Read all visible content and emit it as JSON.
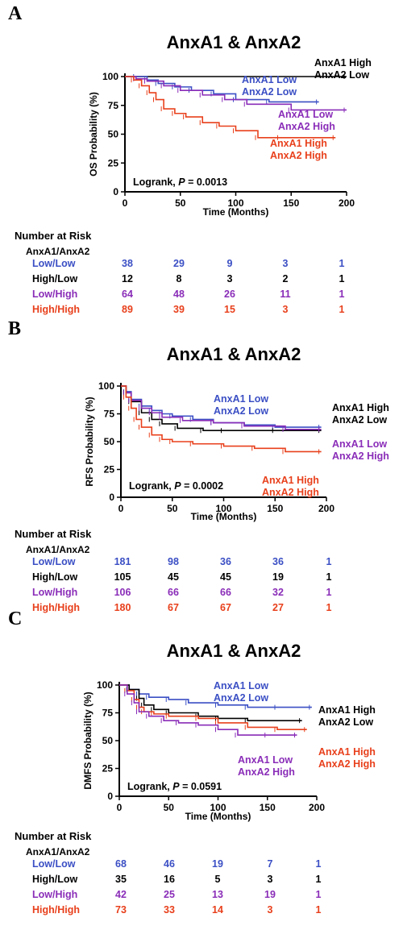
{
  "panels": [
    {
      "letter": "A",
      "title": "AnxA1 & AnxA2",
      "ylabel": "OS Probability (%)",
      "xlabel": "Time (Months)",
      "logrank_prefix": "Logrank, ",
      "logrank_p_label": "P",
      "logrank_value": " = 0.0013",
      "risk": {
        "title": "Number at Risk",
        "subtitle": "AnxA1/AnxA2",
        "rows": [
          {
            "label": "Low/Low",
            "color": "#3b4fc4",
            "values": [
              "38",
              "29",
              "9",
              "3",
              "1"
            ]
          },
          {
            "label": "High/Low",
            "color": "#000000",
            "values": [
              "12",
              "8",
              "3",
              "2",
              "1"
            ]
          },
          {
            "label": "Low/High",
            "color": "#8a2db8",
            "values": [
              "64",
              "48",
              "26",
              "11",
              "1"
            ]
          },
          {
            "label": "High/High",
            "color": "#e8401c",
            "values": [
              "89",
              "39",
              "15",
              "3",
              "1"
            ]
          }
        ]
      },
      "legend": [
        {
          "line1": "AnxA1 High",
          "line2": "AnxA2 Low",
          "color": "#000000"
        },
        {
          "line1": "AnxA1 Low",
          "line2": "AnxA2 Low",
          "color": "#3b4fc4"
        },
        {
          "line1": "AnxA1 Low",
          "line2": "AnxA2 High",
          "color": "#8a2db8"
        },
        {
          "line1": "AnxA1 High",
          "line2": "AnxA2 High",
          "color": "#e8401c"
        }
      ]
    },
    {
      "letter": "B",
      "title": "AnxA1 & AnxA2",
      "ylabel": "RFS Probability (%)",
      "xlabel": "Time (Months)",
      "logrank_prefix": "Logrank, ",
      "logrank_p_label": "P",
      "logrank_value": " = 0.0002",
      "risk": {
        "title": "Number at Risk",
        "subtitle": "AnxA1/AnxA2",
        "rows": [
          {
            "label": "Low/Low",
            "color": "#3b4fc4",
            "values": [
              "181",
              "98",
              "36",
              "36",
              "1"
            ]
          },
          {
            "label": "High/Low",
            "color": "#000000",
            "values": [
              "105",
              "45",
              "45",
              "19",
              "1"
            ]
          },
          {
            "label": "Low/High",
            "color": "#8a2db8",
            "values": [
              "106",
              "66",
              "66",
              "32",
              "1"
            ]
          },
          {
            "label": "High/High",
            "color": "#e8401c",
            "values": [
              "180",
              "67",
              "67",
              "27",
              "1"
            ]
          }
        ]
      },
      "legend": [
        {
          "line1": "AnxA1 Low",
          "line2": "AnxA2 Low",
          "color": "#3b4fc4"
        },
        {
          "line1": "AnxA1 High",
          "line2": "AnxA2 Low",
          "color": "#000000"
        },
        {
          "line1": "AnxA1 Low",
          "line2": "AnxA2 High",
          "color": "#8a2db8"
        },
        {
          "line1": "AnxA1 High",
          "line2": "AnxA2 High",
          "color": "#e8401c"
        }
      ]
    },
    {
      "letter": "C",
      "title": "AnxA1 & AnxA2",
      "ylabel": "DMFS Probability (%)",
      "xlabel": "Time (Months)",
      "logrank_prefix": "Logrank, ",
      "logrank_p_label": "P",
      "logrank_value": " = 0.0591",
      "risk": {
        "title": "Number at Risk",
        "subtitle": "AnxA1/AnxA2",
        "rows": [
          {
            "label": "Low/Low",
            "color": "#3b4fc4",
            "values": [
              "68",
              "46",
              "19",
              "7",
              "1"
            ]
          },
          {
            "label": "High/Low",
            "color": "#000000",
            "values": [
              "35",
              "16",
              "5",
              "3",
              "1"
            ]
          },
          {
            "label": "Low/High",
            "color": "#8a2db8",
            "values": [
              "42",
              "25",
              "13",
              "19",
              "1"
            ]
          },
          {
            "label": "High/High",
            "color": "#e8401c",
            "values": [
              "73",
              "33",
              "14",
              "3",
              "1"
            ]
          }
        ]
      },
      "legend": [
        {
          "line1": "AnxA1 Low",
          "line2": "AnxA2 Low",
          "color": "#3b4fc4"
        },
        {
          "line1": "AnxA1 High",
          "line2": "AnxA2 Low",
          "color": "#000000"
        },
        {
          "line1": "AnxA1 High",
          "line2": "AnxA2 High",
          "color": "#e8401c"
        },
        {
          "line1": "AnxA1 Low",
          "line2": "AnxA2 High",
          "color": "#8a2db8"
        }
      ]
    }
  ],
  "chart_data": [
    {
      "type": "line",
      "title": "AnxA1 & AnxA2",
      "xlabel": "Time (Months)",
      "ylabel": "OS Probability (%)",
      "xlim": [
        0,
        200
      ],
      "ylim": [
        0,
        100
      ],
      "xticks": [
        0,
        50,
        100,
        150,
        200
      ],
      "yticks": [
        0,
        25,
        50,
        75,
        100
      ],
      "series": [
        {
          "name": "AnxA1 High / AnxA2 Low",
          "color": "#000000",
          "x": [
            0,
            200
          ],
          "y": [
            100,
            100
          ]
        },
        {
          "name": "AnxA1 Low / AnxA2 Low",
          "color": "#3b4fc4",
          "x": [
            0,
            10,
            20,
            30,
            45,
            60,
            80,
            100,
            130,
            175
          ],
          "y": [
            100,
            100,
            97,
            94,
            91,
            88,
            85,
            80,
            78,
            78
          ]
        },
        {
          "name": "AnxA1 Low / AnxA2 High",
          "color": "#8a2db8",
          "x": [
            0,
            10,
            20,
            35,
            50,
            70,
            90,
            110,
            150,
            200
          ],
          "y": [
            100,
            98,
            96,
            92,
            88,
            84,
            80,
            76,
            71,
            71
          ]
        },
        {
          "name": "AnxA1 High / AnxA2 High",
          "color": "#e8401c",
          "x": [
            0,
            8,
            15,
            22,
            28,
            35,
            45,
            55,
            70,
            85,
            100,
            120,
            140,
            190
          ],
          "y": [
            100,
            97,
            92,
            86,
            80,
            72,
            68,
            65,
            60,
            57,
            53,
            47,
            47,
            47
          ]
        }
      ]
    },
    {
      "type": "line",
      "title": "AnxA1 & AnxA2",
      "xlabel": "Time (Months)",
      "ylabel": "RFS Probability (%)",
      "xlim": [
        0,
        200
      ],
      "ylim": [
        0,
        100
      ],
      "xticks": [
        0,
        50,
        100,
        150,
        200
      ],
      "yticks": [
        0,
        25,
        50,
        75,
        100
      ],
      "series": [
        {
          "name": "AnxA1 Low / AnxA2 Low",
          "color": "#3b4fc4",
          "x": [
            0,
            5,
            10,
            20,
            30,
            40,
            50,
            70,
            90,
            120,
            150,
            195
          ],
          "y": [
            100,
            95,
            88,
            82,
            78,
            75,
            73,
            70,
            67,
            65,
            63,
            63
          ]
        },
        {
          "name": "AnxA1 High / AnxA2 Low",
          "color": "#000000",
          "x": [
            0,
            5,
            10,
            20,
            30,
            40,
            55,
            80,
            100,
            150,
            195
          ],
          "y": [
            100,
            94,
            86,
            76,
            70,
            66,
            62,
            60,
            60,
            60,
            60
          ]
        },
        {
          "name": "AnxA1 Low / AnxA2 High",
          "color": "#8a2db8",
          "x": [
            0,
            5,
            10,
            20,
            30,
            40,
            60,
            90,
            120,
            160,
            195
          ],
          "y": [
            100,
            94,
            87,
            80,
            76,
            72,
            69,
            67,
            64,
            61,
            61
          ]
        },
        {
          "name": "AnxA1 High / AnxA2 High",
          "color": "#e8401c",
          "x": [
            0,
            5,
            10,
            15,
            20,
            30,
            40,
            50,
            70,
            100,
            130,
            160,
            195
          ],
          "y": [
            100,
            90,
            80,
            70,
            63,
            56,
            52,
            50,
            48,
            46,
            44,
            41,
            41
          ]
        }
      ]
    },
    {
      "type": "line",
      "title": "AnxA1 & AnxA2",
      "xlabel": "Time (Months)",
      "ylabel": "DMFS Probability (%)",
      "xlim": [
        0,
        200
      ],
      "ylim": [
        0,
        100
      ],
      "xticks": [
        0,
        50,
        100,
        150,
        200
      ],
      "yticks": [
        0,
        25,
        50,
        75,
        100
      ],
      "series": [
        {
          "name": "AnxA1 Low / AnxA2 Low",
          "color": "#3b4fc4",
          "x": [
            0,
            10,
            20,
            30,
            50,
            70,
            100,
            130,
            160,
            195
          ],
          "y": [
            100,
            96,
            92,
            89,
            87,
            84,
            82,
            80,
            80,
            80
          ]
        },
        {
          "name": "AnxA1 High / AnxA2 Low",
          "color": "#000000",
          "x": [
            0,
            10,
            20,
            25,
            35,
            50,
            80,
            100,
            130,
            185
          ],
          "y": [
            100,
            96,
            88,
            82,
            78,
            75,
            72,
            70,
            68,
            68
          ]
        },
        {
          "name": "AnxA1 High / AnxA2 High",
          "color": "#e8401c",
          "x": [
            0,
            8,
            15,
            20,
            25,
            35,
            50,
            80,
            100,
            130,
            160,
            190
          ],
          "y": [
            100,
            95,
            87,
            80,
            76,
            74,
            72,
            70,
            66,
            62,
            60,
            60
          ]
        },
        {
          "name": "AnxA1 Low / AnxA2 High",
          "color": "#8a2db8",
          "x": [
            0,
            8,
            15,
            20,
            30,
            45,
            60,
            80,
            100,
            120,
            150,
            180
          ],
          "y": [
            100,
            92,
            84,
            76,
            72,
            68,
            66,
            64,
            60,
            55,
            55,
            55
          ]
        }
      ]
    }
  ]
}
